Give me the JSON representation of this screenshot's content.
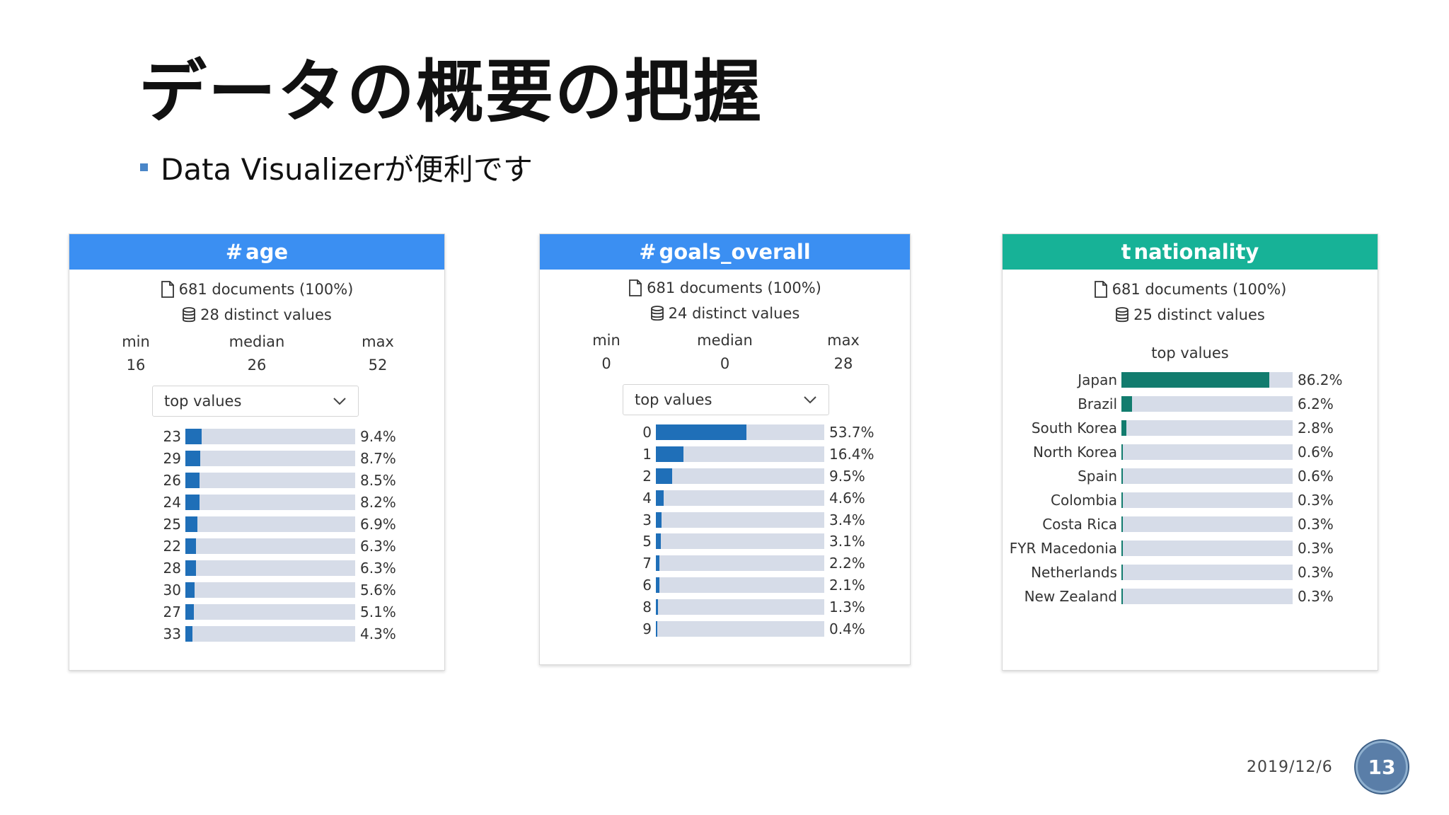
{
  "slide": {
    "title": "データの概要の把握",
    "bullet": "Data Visualizerが便利です",
    "date": "2019/12/6",
    "page_number": "13"
  },
  "colors": {
    "blue_header": "#3b8ff2",
    "teal_header": "#17b297",
    "blue_bar": "#1f6fb8",
    "teal_bar": "#127c6e",
    "track": "#d6dce8"
  },
  "panels": {
    "age": {
      "header": "#age",
      "header_icon": "#",
      "field_name": "age",
      "documents": "681 documents (100%)",
      "distinct": "28 distinct values",
      "min_label": "min",
      "min": "16",
      "median_label": "median",
      "median": "26",
      "max_label": "max",
      "max": "52",
      "dropdown": "top values",
      "rows": [
        {
          "label": "23",
          "pct": "9.4%",
          "value": 9.4
        },
        {
          "label": "29",
          "pct": "8.7%",
          "value": 8.7
        },
        {
          "label": "26",
          "pct": "8.5%",
          "value": 8.5
        },
        {
          "label": "24",
          "pct": "8.2%",
          "value": 8.2
        },
        {
          "label": "25",
          "pct": "6.9%",
          "value": 6.9
        },
        {
          "label": "22",
          "pct": "6.3%",
          "value": 6.3
        },
        {
          "label": "28",
          "pct": "6.3%",
          "value": 6.3
        },
        {
          "label": "30",
          "pct": "5.6%",
          "value": 5.6
        },
        {
          "label": "27",
          "pct": "5.1%",
          "value": 5.1
        },
        {
          "label": "33",
          "pct": "4.3%",
          "value": 4.3
        }
      ]
    },
    "goals": {
      "header": "#goals_overall",
      "header_icon": "#",
      "field_name": "goals_overall",
      "documents": "681 documents (100%)",
      "distinct": "24 distinct values",
      "min_label": "min",
      "min": "0",
      "median_label": "median",
      "median": "0",
      "max_label": "max",
      "max": "28",
      "dropdown": "top values",
      "rows": [
        {
          "label": "0",
          "pct": "53.7%",
          "value": 53.7
        },
        {
          "label": "1",
          "pct": "16.4%",
          "value": 16.4
        },
        {
          "label": "2",
          "pct": "9.5%",
          "value": 9.5
        },
        {
          "label": "4",
          "pct": "4.6%",
          "value": 4.6
        },
        {
          "label": "3",
          "pct": "3.4%",
          "value": 3.4
        },
        {
          "label": "5",
          "pct": "3.1%",
          "value": 3.1
        },
        {
          "label": "7",
          "pct": "2.2%",
          "value": 2.2
        },
        {
          "label": "6",
          "pct": "2.1%",
          "value": 2.1
        },
        {
          "label": "8",
          "pct": "1.3%",
          "value": 1.3
        },
        {
          "label": "9",
          "pct": "0.4%",
          "value": 0.4
        }
      ]
    },
    "nationality": {
      "header": "tnationality",
      "header_icon": "t",
      "field_name": "nationality",
      "documents": "681 documents (100%)",
      "distinct": "25 distinct values",
      "top_values_title": "top values",
      "rows": [
        {
          "label": "Japan",
          "pct": "86.2%",
          "value": 86.2
        },
        {
          "label": "Brazil",
          "pct": "6.2%",
          "value": 6.2
        },
        {
          "label": "South Korea",
          "pct": "2.8%",
          "value": 2.8
        },
        {
          "label": "North Korea",
          "pct": "0.6%",
          "value": 0.6
        },
        {
          "label": "Spain",
          "pct": "0.6%",
          "value": 0.6
        },
        {
          "label": "Colombia",
          "pct": "0.3%",
          "value": 0.3
        },
        {
          "label": "Costa Rica",
          "pct": "0.3%",
          "value": 0.3
        },
        {
          "label": "FYR Macedonia",
          "pct": "0.3%",
          "value": 0.3
        },
        {
          "label": "Netherlands",
          "pct": "0.3%",
          "value": 0.3
        },
        {
          "label": "New Zealand",
          "pct": "0.3%",
          "value": 0.3
        }
      ]
    }
  }
}
